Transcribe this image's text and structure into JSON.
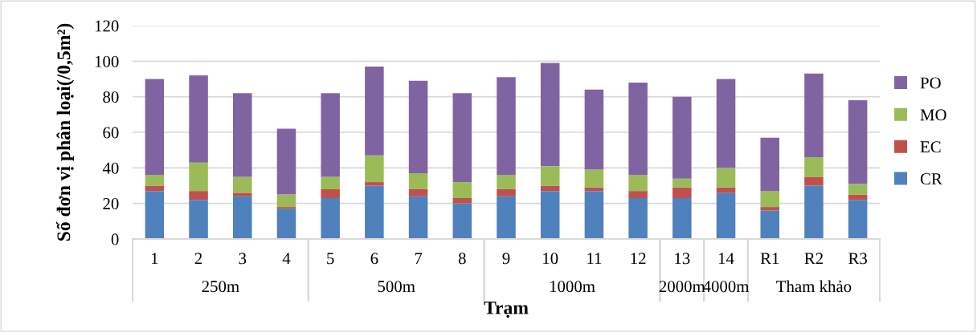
{
  "chart_data": {
    "type": "bar",
    "stacked": true,
    "xlabel": "Trạm",
    "ylabel": "Số đơn vị phân loại(/0,5m²)",
    "categories": [
      "1",
      "2",
      "3",
      "4",
      "5",
      "6",
      "7",
      "8",
      "9",
      "10",
      "11",
      "12",
      "13",
      "14",
      "R1",
      "R2",
      "R3"
    ],
    "series": [
      {
        "name": "CR",
        "color": "#4f81bd",
        "values": [
          27,
          22,
          24,
          17,
          23,
          30,
          24,
          20,
          24,
          27,
          27,
          23,
          23,
          26,
          16,
          30,
          22
        ]
      },
      {
        "name": "EC",
        "color": "#c0504d",
        "values": [
          3,
          5,
          2,
          1,
          5,
          2,
          4,
          3,
          4,
          3,
          2,
          4,
          6,
          3,
          2,
          5,
          3
        ]
      },
      {
        "name": "MO",
        "color": "#9bbb59",
        "values": [
          6,
          16,
          9,
          7,
          7,
          15,
          9,
          9,
          8,
          11,
          10,
          9,
          5,
          11,
          9,
          11,
          6
        ]
      },
      {
        "name": "PO",
        "color": "#8064a2",
        "values": [
          54,
          49,
          47,
          37,
          47,
          50,
          52,
          50,
          55,
          58,
          45,
          52,
          46,
          50,
          30,
          47,
          47
        ]
      }
    ],
    "annotations": [
      "250m",
      "500m",
      "1000m",
      "2000m",
      "4000m",
      "Tham khảo"
    ],
    "ylim": [
      0,
      120
    ],
    "yticks": [
      0,
      20,
      40,
      60,
      80,
      100,
      120
    ],
    "grid": "y",
    "legend": "right"
  }
}
